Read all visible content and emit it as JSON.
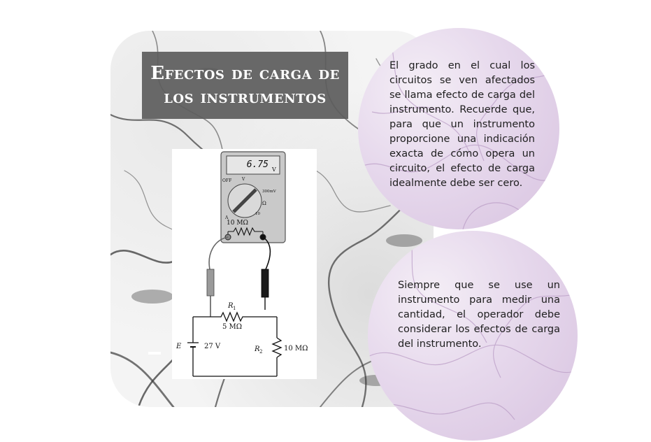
{
  "slide": {
    "title": "Efectos de carga de los instrumentos",
    "paragraph_1": "El grado en el cual los circuitos se ven afectados se llama efecto de carga del instrumento. Recuerde que, para que un instrumento proporcione una indicación exacta de cómo opera un circuito, el efecto de carga idealmente debe ser cero.",
    "paragraph_2": "Siempre que se use un instrumento para medir una cantidad, el operador debe considerar los efectos de carga del instrumento."
  },
  "figure": {
    "meter_reading": "6.75",
    "meter_unit": "V",
    "dial_off": "OFF",
    "dial_v": "V",
    "dial_mv": "300mV",
    "dial_ohm": "Ω",
    "dial_a": "A",
    "dial_10": "10",
    "internal_resistance": "10 MΩ",
    "r1_label": "R",
    "r1_sub": "1",
    "r1_value": "5 MΩ",
    "r2_label": "R",
    "r2_sub": "2",
    "r2_value": "10 MΩ",
    "source_label": "E",
    "source_value": "27 V"
  }
}
